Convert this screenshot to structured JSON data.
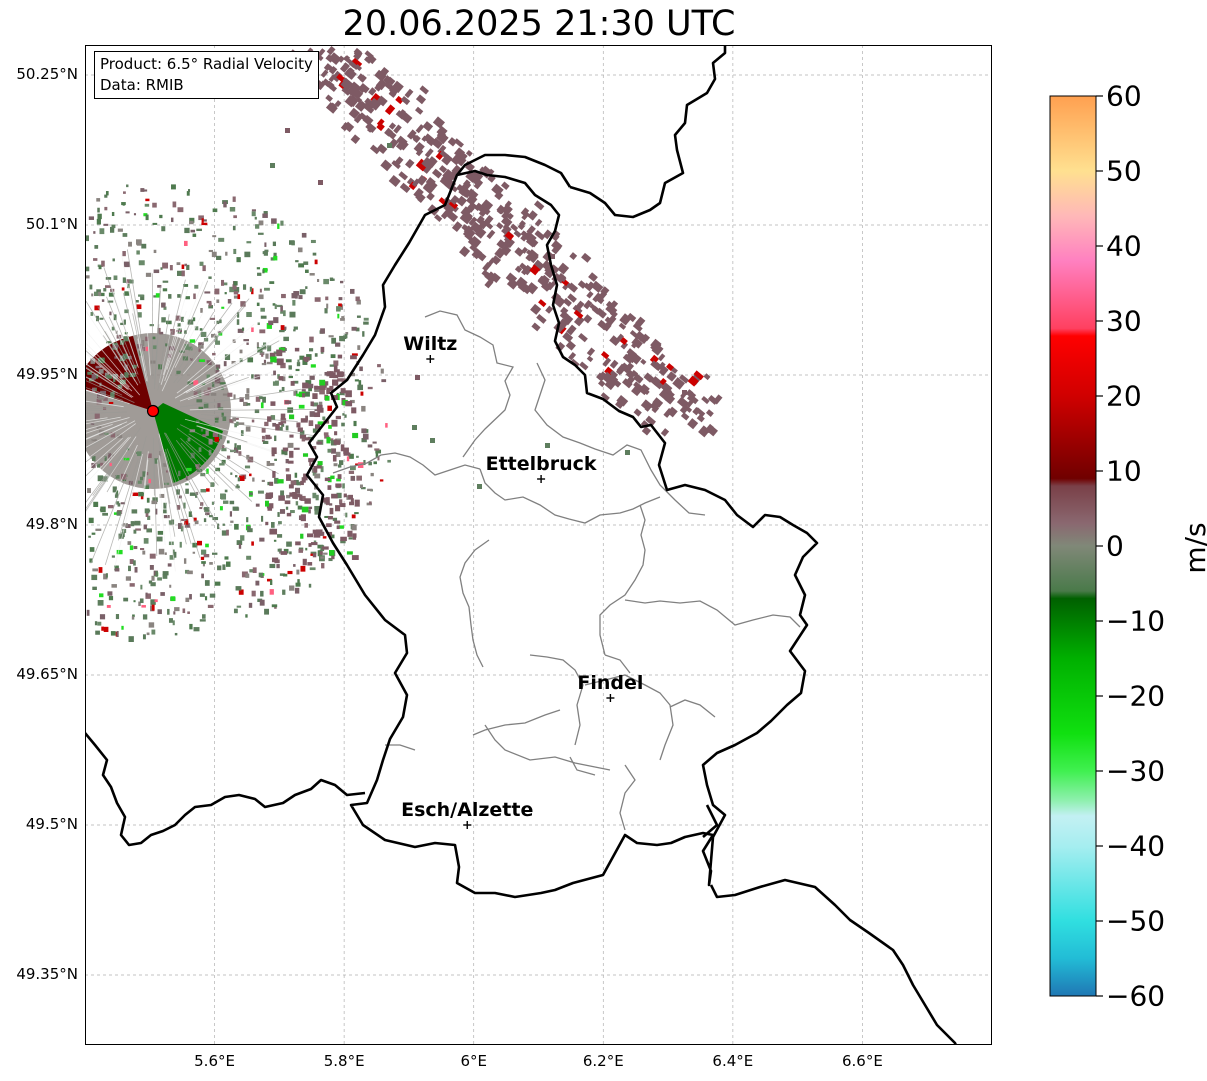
{
  "title": "20.06.2025 21:30 UTC",
  "info": {
    "product": "Product: 6.5° Radial Velocity",
    "data_source": "Data: RMIB"
  },
  "map": {
    "lon_range": [
      5.4,
      6.8
    ],
    "lat_range": [
      49.28,
      50.28
    ],
    "lat_ticks": [
      {
        "value": 50.25,
        "label": "50.25°N"
      },
      {
        "value": 50.1,
        "label": "50.1°N"
      },
      {
        "value": 49.95,
        "label": "49.95°N"
      },
      {
        "value": 49.8,
        "label": "49.8°N"
      },
      {
        "value": 49.65,
        "label": "49.65°N"
      },
      {
        "value": 49.5,
        "label": "49.5°N"
      },
      {
        "value": 49.35,
        "label": "49.35°N"
      }
    ],
    "lon_ticks": [
      {
        "value": 5.6,
        "label": "5.6°E"
      },
      {
        "value": 5.8,
        "label": "5.8°E"
      },
      {
        "value": 6.0,
        "label": "6°E"
      },
      {
        "value": 6.2,
        "label": "6.2°E"
      },
      {
        "value": 6.4,
        "label": "6.4°E"
      },
      {
        "value": 6.6,
        "label": "6.6°E"
      }
    ],
    "radar_site": {
      "lon": 5.505,
      "lat": 49.914
    },
    "cities": [
      {
        "name": "Wiltz",
        "lon": 5.933,
        "lat": 49.966
      },
      {
        "name": "Ettelbruck",
        "lon": 6.104,
        "lat": 49.846
      },
      {
        "name": "Findel",
        "lon": 6.211,
        "lat": 49.627
      },
      {
        "name": "Esch/Alzette",
        "lon": 5.99,
        "lat": 49.5
      }
    ],
    "grid": true,
    "border_color": "#000000",
    "canton_color": "#808080"
  },
  "colorbar": {
    "label": "m/s",
    "ticks": [
      {
        "value": 60,
        "label": "60"
      },
      {
        "value": 50,
        "label": "50"
      },
      {
        "value": 40,
        "label": "40"
      },
      {
        "value": 30,
        "label": "30"
      },
      {
        "value": 20,
        "label": "20"
      },
      {
        "value": 10,
        "label": "10"
      },
      {
        "value": 0,
        "label": "0"
      },
      {
        "value": -10,
        "label": "−10"
      },
      {
        "value": -20,
        "label": "−20"
      },
      {
        "value": -30,
        "label": "−30"
      },
      {
        "value": -40,
        "label": "−40"
      },
      {
        "value": -50,
        "label": "−50"
      },
      {
        "value": -60,
        "label": "−60"
      }
    ],
    "range": [
      -60,
      60
    ],
    "stops": [
      {
        "value": -60,
        "color": "#1f77b4"
      },
      {
        "value": -55,
        "color": "#22bcd6"
      },
      {
        "value": -50,
        "color": "#30dfe0"
      },
      {
        "value": -40,
        "color": "#a6eef0"
      },
      {
        "value": -36,
        "color": "#c3f0f3"
      },
      {
        "value": -34,
        "color": "#90f0b0"
      },
      {
        "value": -30,
        "color": "#40f050"
      },
      {
        "value": -25,
        "color": "#10e010"
      },
      {
        "value": -15,
        "color": "#00b000"
      },
      {
        "value": -7,
        "color": "#006000"
      },
      {
        "value": -6,
        "color": "#4a7a4a"
      },
      {
        "value": 0,
        "color": "#808878"
      },
      {
        "value": 3,
        "color": "#8a6870"
      },
      {
        "value": 8,
        "color": "#7a4048"
      },
      {
        "value": 9,
        "color": "#700000"
      },
      {
        "value": 20,
        "color": "#d00000"
      },
      {
        "value": 28,
        "color": "#ff0000"
      },
      {
        "value": 29,
        "color": "#ff4060"
      },
      {
        "value": 38,
        "color": "#ff80c0"
      },
      {
        "value": 44,
        "color": "#ffb8b8"
      },
      {
        "value": 50,
        "color": "#ffe090"
      },
      {
        "value": 60,
        "color": "#ffa050"
      }
    ]
  }
}
